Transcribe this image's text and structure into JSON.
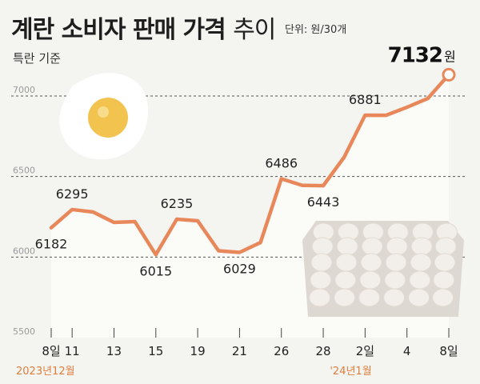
{
  "title": {
    "main": "계란 소비자 판매 가격",
    "trend": "추이"
  },
  "unit_note": "단위: 원/30개",
  "subtitle": "특란 기준",
  "colors": {
    "line": "#e8885a",
    "point_fill": "#ffffff",
    "grid": "#555555",
    "month_label": "#e07e3c",
    "background": "#f4f4f1",
    "area": "#fbfbf8"
  },
  "chart_data": {
    "type": "line",
    "title": "계란 소비자 판매 가격 추이",
    "subtitle": "특란 기준",
    "unit": "원/30개",
    "ylim": [
      5500,
      7150
    ],
    "yticks": [
      5500,
      6000,
      6500,
      7000
    ],
    "x": [
      "12/8",
      "12/11",
      "12/12",
      "12/13",
      "12/14",
      "12/15",
      "12/18",
      "12/19",
      "12/20",
      "12/21",
      "12/22",
      "12/26",
      "12/27",
      "12/28",
      "12/29",
      "1/2",
      "1/3",
      "1/4",
      "1/5",
      "1/8"
    ],
    "values": [
      6182,
      6295,
      6280,
      6215,
      6220,
      6015,
      6235,
      6225,
      6039,
      6029,
      6090,
      6486,
      6445,
      6443,
      6620,
      6881,
      6880,
      6930,
      6985,
      7132
    ],
    "xtick_labels": [
      "8일",
      "11",
      "13",
      "15",
      "19",
      "21",
      "26",
      "28",
      "2일",
      "4",
      "8일"
    ],
    "xtick_index": [
      0,
      1,
      3,
      5,
      7,
      9,
      11,
      13,
      15,
      17,
      19
    ],
    "labeled_points": [
      {
        "index": 0,
        "label": "6182",
        "position": "below"
      },
      {
        "index": 1,
        "label": "6295",
        "position": "above"
      },
      {
        "index": 5,
        "label": "6015",
        "position": "below"
      },
      {
        "index": 6,
        "label": "6235",
        "position": "above"
      },
      {
        "index": 9,
        "label": "6029",
        "position": "below"
      },
      {
        "index": 11,
        "label": "6486",
        "position": "above"
      },
      {
        "index": 13,
        "label": "6443",
        "position": "below"
      },
      {
        "index": 15,
        "label": "6881",
        "position": "above"
      }
    ],
    "last_value": {
      "value": "7132",
      "unit": "원"
    },
    "month_labels": [
      {
        "index": 0,
        "text": "2023년12월"
      },
      {
        "index": 15,
        "text": "'24년1월"
      }
    ]
  }
}
